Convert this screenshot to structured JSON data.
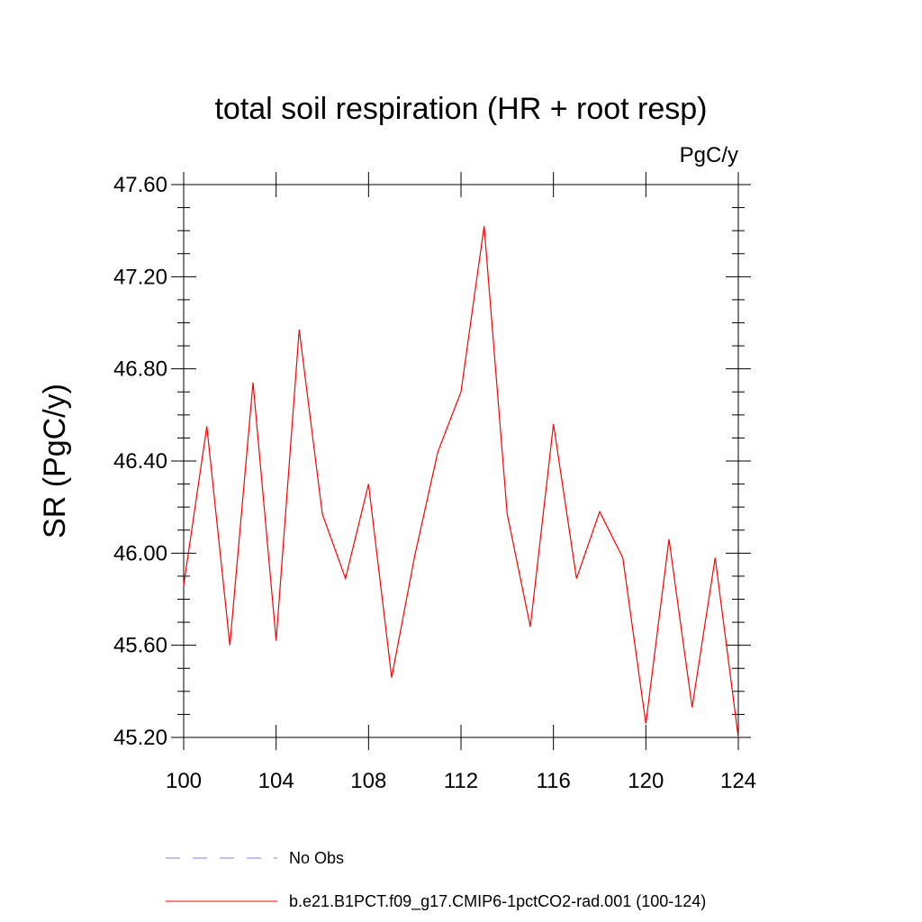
{
  "chart_data": {
    "type": "line",
    "title": "total soil respiration (HR + root resp)",
    "units_label": "PgC/y",
    "ylabel": "SR  (PgC/y)",
    "xlabel": "",
    "xlim": [
      100,
      124
    ],
    "ylim": [
      45.2,
      47.6
    ],
    "x_ticks": [
      100,
      104,
      108,
      112,
      116,
      120,
      124
    ],
    "x_tick_labels": [
      "100",
      "104",
      "108",
      "112",
      "116",
      "120",
      "124"
    ],
    "y_ticks": [
      45.2,
      45.6,
      46.0,
      46.4,
      46.8,
      47.2,
      47.6
    ],
    "y_tick_labels": [
      "45.20",
      "45.60",
      "46.00",
      "46.40",
      "46.80",
      "47.20",
      "47.60"
    ],
    "grid": false,
    "legend_placement": "bottom",
    "series": [
      {
        "name": "b.e21.B1PCT.f09_g17.CMIP6-1pctCO2-rad.001 (100-124)",
        "color": "#ff0000",
        "style": "solid",
        "x": [
          100,
          101,
          102,
          103,
          104,
          105,
          106,
          107,
          108,
          109,
          110,
          111,
          112,
          113,
          114,
          115,
          116,
          117,
          118,
          119,
          120,
          121,
          122,
          123,
          124
        ],
        "y": [
          45.86,
          46.55,
          45.6,
          46.74,
          45.62,
          46.97,
          46.17,
          45.89,
          46.3,
          45.46,
          45.99,
          46.44,
          46.7,
          47.42,
          46.17,
          45.68,
          46.56,
          45.89,
          46.18,
          45.98,
          45.26,
          46.06,
          45.33,
          45.98,
          45.2
        ]
      },
      {
        "name": "No Obs",
        "color": "#8a7fd0",
        "style": "dashed",
        "x": [],
        "y": []
      }
    ]
  }
}
